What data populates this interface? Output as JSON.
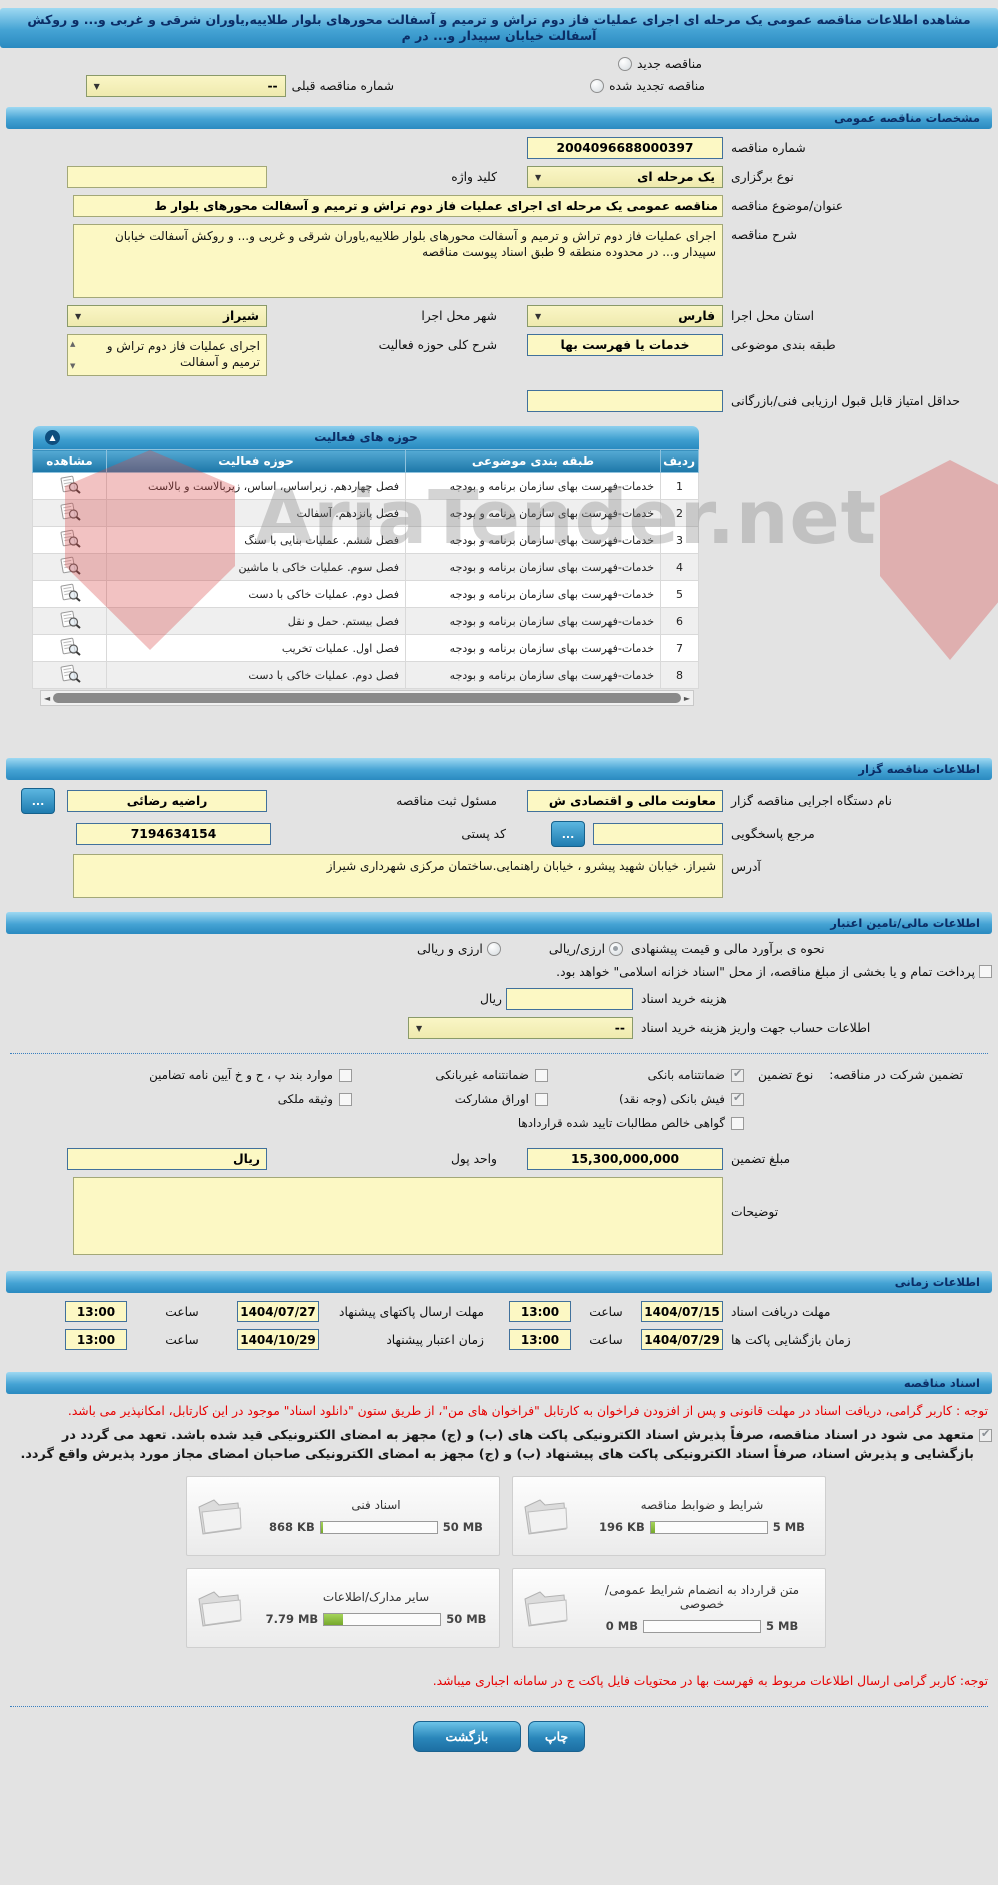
{
  "title_bar": "مشاهده اطلاعات مناقصه عمومی یک مرحله ای اجرای عملیات فاز دوم تراش و ترمیم و آسفالت محورهای بلوار طلاییه,یاوران شرقی و غربی و... و روکش آسفالت خیابان سپیدار و... در م",
  "watermark": "AriaTender.net",
  "icons": {
    "dropdown": "▼",
    "collapse": "▲",
    "scroll_left": "◄",
    "scroll_right": "►",
    "more": "..."
  },
  "top": {
    "new_label": "مناقصه جدید",
    "renew_label": "مناقصه تجدید شده",
    "prev_number_label": "شماره مناقصه قبلی",
    "prev_number_value": "--"
  },
  "specs": {
    "header": "مشخصات مناقصه عمومی",
    "number_label": "شماره مناقصه",
    "number": "2004096688000397",
    "type_label": "نوع برگزاری",
    "type_value": "یک مرحله ای",
    "keyword_label": "کلید واژه",
    "keyword_value": "",
    "title_label": "عنوان/موضوع مناقصه",
    "title_value": "مناقصه عمومی یک مرحله ای اجرای عملیات فاز دوم تراش و ترمیم و آسفالت محورهای بلوار ط",
    "desc_label": "شرح مناقصه",
    "desc_value": "اجرای عملیات فاز دوم تراش و ترمیم و آسفالت محورهای بلوار طلاییه,یاوران شرقی و غربی و... و روکش آسفالت خیابان سپیدار و... در محدوده منطقه 9 طبق اسناد پیوست مناقصه",
    "province_label": "استان محل اجرا",
    "province_value": "فارس",
    "city_label": "شهر محل اجرا",
    "city_value": "شیراز",
    "category_label": "طبقه بندی موضوعی",
    "category_value": "خدمات یا فهرست بها",
    "scope_label": "شرح کلی حوزه فعالیت",
    "scope_value": "اجرای عملیات فاز دوم تراش و ترمیم و آسفالت",
    "min_score_label": "حداقل امتیاز قابل قبول ارزیابی فنی/بازرگانی"
  },
  "activities": {
    "header": "حوزه های فعالیت",
    "col_row": "ردیف",
    "col_category": "طبقه بندی موضوعی",
    "col_activity": "حوزه فعالیت",
    "col_view": "مشاهده",
    "rows": [
      {
        "n": "1",
        "cat": "خدمات-فهرست بهای سازمان برنامه و بودجه",
        "act": "فصل چهاردهم. زیراساس، اساس، زیربالاست و بالاست"
      },
      {
        "n": "2",
        "cat": "خدمات-فهرست بهای سازمان برنامه و بودجه",
        "act": "فصل پانزدهم. آسفالت"
      },
      {
        "n": "3",
        "cat": "خدمات-فهرست بهای سازمان برنامه و بودجه",
        "act": "فصل ششم. عملیات بنایی با سنگ"
      },
      {
        "n": "4",
        "cat": "خدمات-فهرست بهای سازمان برنامه و بودجه",
        "act": "فصل سوم. عملیات خاکی با ماشین"
      },
      {
        "n": "5",
        "cat": "خدمات-فهرست بهای سازمان برنامه و بودجه",
        "act": "فصل دوم. عملیات خاکی با دست"
      },
      {
        "n": "6",
        "cat": "خدمات-فهرست بهای سازمان برنامه و بودجه",
        "act": "فصل بیستم. حمل و نقل"
      },
      {
        "n": "7",
        "cat": "خدمات-فهرست بهای سازمان برنامه و بودجه",
        "act": "فصل اول. عملیات تخریب"
      },
      {
        "n": "8",
        "cat": "خدمات-فهرست بهای سازمان برنامه و بودجه",
        "act": "فصل دوم. عملیات خاکی با دست"
      }
    ]
  },
  "organizer": {
    "header": "اطلاعات مناقصه گزار",
    "agency_label": "نام دستگاه اجرایی مناقصه گزار",
    "agency": "معاونت مالی و اقتصادی ش",
    "registrar_label": "مسئول ثبت مناقصه",
    "registrar": "راضیه رضائی",
    "contact_label": "مرجع پاسخگویی",
    "contact_value": "",
    "postal_label": "کد پستی",
    "postal": "7194634154",
    "address_label": "آدرس",
    "address": "شیراز. خیابان شهید پیشرو ، خیابان راهنمایی.ساختمان مرکزی شهرداری شیراز"
  },
  "financial": {
    "header": "اطلاعات مالی/تامین اعتبار",
    "estimate_label": "نحوه ی برآورد مالی و قیمت پیشنهادی",
    "opt_rial": "ارزی/ریالی",
    "opt_both": "ارزی و ریالی",
    "opt_rial_selected": true,
    "treasury": "پرداخت تمام و یا بخشی از مبلغ مناقصه، از محل \"اسناد خزانه اسلامی\" خواهد بود.",
    "fee_label": "هزینه خرید اسناد",
    "fee_value": "",
    "rial": "ریال",
    "account_label": "اطلاعات حساب جهت واریز هزینه خرید اسناد",
    "account_value": "--",
    "guar_title": "تضمین شرکت در مناقصه:",
    "guar_type_label": "نوع تضمین",
    "guarantees": [
      {
        "label": "ضمانتنامه بانکی",
        "checked": true
      },
      {
        "label": "ضمانتنامه غیربانکی",
        "checked": false
      },
      {
        "label": "موارد بند پ ، ح و خ آیین نامه تضامین",
        "checked": false
      },
      {
        "label": "فیش بانکی (وجه نقد)",
        "checked": true
      },
      {
        "label": "اوراق مشارکت",
        "checked": false
      },
      {
        "label": "وثیقه ملکی",
        "checked": false
      },
      {
        "label": "گواهی خالص مطالبات تایید شده قراردادها",
        "checked": false
      }
    ],
    "amount_label": "مبلغ تضمین",
    "amount": "15,300,000,000",
    "unit_label": "واحد پول",
    "unit": "ریال",
    "notes_label": "توضیحات",
    "notes_value": ""
  },
  "schedule": {
    "header": "اطلاعات زمانی",
    "hour_label": "ساعت",
    "items": [
      {
        "label": "مهلت دریافت اسناد",
        "date": "1404/07/15",
        "time": "13:00"
      },
      {
        "label": "مهلت ارسال پاکتهای پیشنهاد",
        "date": "1404/07/27",
        "time": "13:00"
      },
      {
        "label": "زمان بازگشایی پاکت ها",
        "date": "1404/07/29",
        "time": "13:00"
      },
      {
        "label": "زمان اعتبار پیشنهاد",
        "date": "1404/10/29",
        "time": "13:00"
      }
    ]
  },
  "docs": {
    "header": "اسناد مناقصه",
    "notice1": "توجه : کاربر گرامی، دریافت اسناد در مهلت قانونی و پس از افزودن فراخوان به کارتابل \"فراخوان های من\"، از طریق ستون \"دانلود اسناد\" موجود در این کارتابل، امکانپذیر می باشد.",
    "commitment": "متعهد می شود در اسناد مناقصه، صرفاً پذیرش اسناد الکترونیکی پاکت های (ب) و (ج) مجهز به امضای الکترونیکی قید شده باشد. تعهد می گردد در بازگشایی و پذیرش اسناد، صرفاً اسناد الکترونیکی پاکت های پیشنهاد (ب) و (ج) مجهز به امضای الکترونیکی صاحبان امضای مجاز مورد پذیرش واقع گردد.",
    "commitment_checked": true,
    "files": [
      {
        "title": "شرایط و ضوابط مناقصه",
        "size": "196 KB",
        "max": "5 MB",
        "pct": 4
      },
      {
        "title": "اسناد فنی",
        "size": "868 KB",
        "max": "50 MB",
        "pct": 2
      },
      {
        "title": "متن قرارداد به انضمام شرایط عمومی/خصوصی",
        "size": "0 MB",
        "max": "5 MB",
        "pct": 0
      },
      {
        "title": "سایر مدارک/اطلاعات",
        "size": "7.79 MB",
        "max": "50 MB",
        "pct": 16
      }
    ],
    "notice2": "توجه: کاربر گرامی ارسال اطلاعات مربوط به فهرست بها در محتویات فایل پاکت ج در سامانه اجباری میباشد."
  },
  "footer": {
    "print": "چاپ",
    "back": "بازگشت"
  }
}
